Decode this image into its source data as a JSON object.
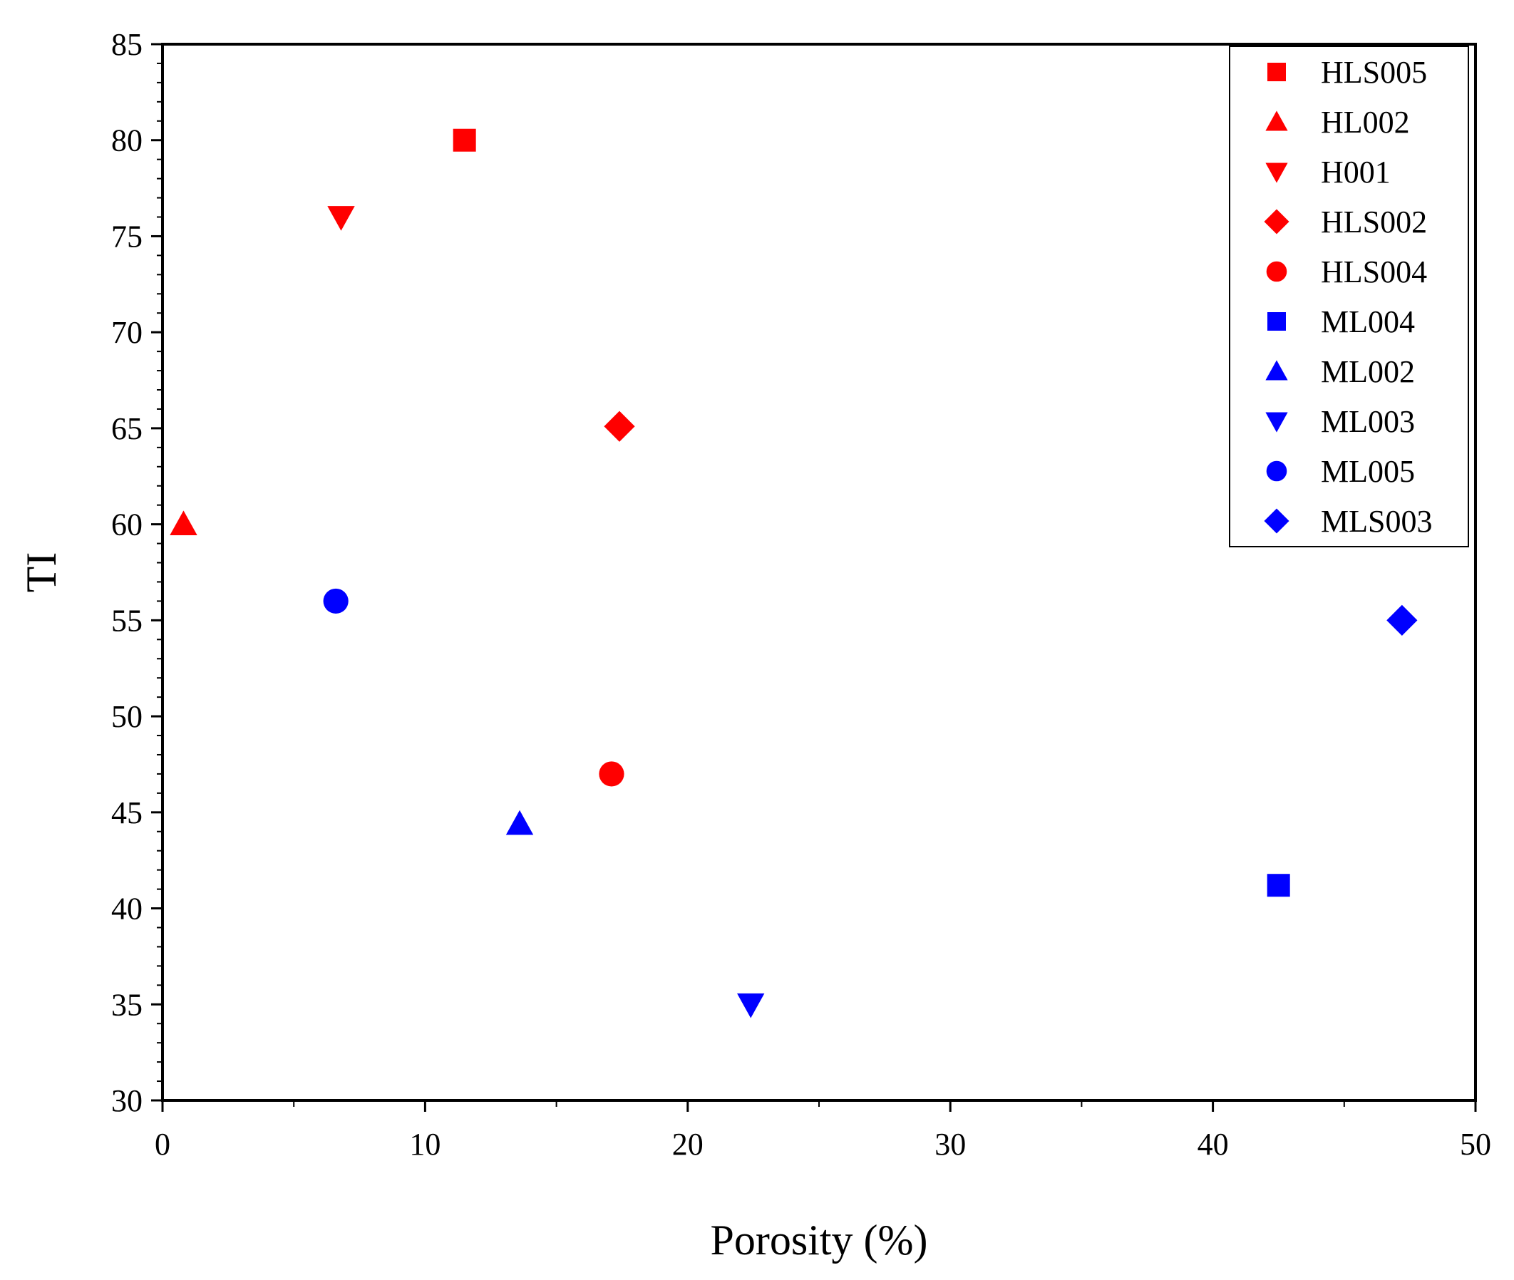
{
  "chart_data": {
    "type": "scatter",
    "title": "",
    "xlabel": "Porosity (%)",
    "ylabel": "TI",
    "xlim": [
      0,
      50
    ],
    "ylim": [
      30,
      85
    ],
    "xticks": [
      0,
      10,
      20,
      30,
      40,
      50
    ],
    "yticks": [
      30,
      35,
      40,
      45,
      50,
      55,
      60,
      65,
      70,
      75,
      80,
      85
    ],
    "x_tick_labels": [
      "0",
      "10",
      "20",
      "30",
      "40",
      "50"
    ],
    "y_tick_labels": [
      "30",
      "35",
      "40",
      "45",
      "50",
      "55",
      "60",
      "65",
      "70",
      "75",
      "80",
      "85"
    ],
    "grid": false,
    "legend_position": "top-right",
    "series": [
      {
        "name": "HLS005",
        "color": "#ff0000",
        "marker": "square",
        "x": [
          11.5
        ],
        "y": [
          80
        ]
      },
      {
        "name": "HL002",
        "color": "#ff0000",
        "marker": "triangle-up",
        "x": [
          0.8
        ],
        "y": [
          60
        ]
      },
      {
        "name": "H001",
        "color": "#ff0000",
        "marker": "triangle-down",
        "x": [
          6.8
        ],
        "y": [
          76
        ]
      },
      {
        "name": "HLS002",
        "color": "#ff0000",
        "marker": "diamond",
        "x": [
          17.4
        ],
        "y": [
          65.1
        ]
      },
      {
        "name": "HLS004",
        "color": "#ff0000",
        "marker": "circle",
        "x": [
          17.1
        ],
        "y": [
          47
        ]
      },
      {
        "name": "ML004",
        "color": "#0000ff",
        "marker": "square",
        "x": [
          42.5
        ],
        "y": [
          41.2
        ]
      },
      {
        "name": "ML002",
        "color": "#0000ff",
        "marker": "triangle-up",
        "x": [
          13.6
        ],
        "y": [
          44.4
        ]
      },
      {
        "name": "ML003",
        "color": "#0000ff",
        "marker": "triangle-down",
        "x": [
          22.4
        ],
        "y": [
          35
        ]
      },
      {
        "name": "ML005",
        "color": "#0000ff",
        "marker": "circle",
        "x": [
          6.6
        ],
        "y": [
          56
        ]
      },
      {
        "name": "MLS003",
        "color": "#0000ff",
        "marker": "diamond",
        "x": [
          47.2
        ],
        "y": [
          55
        ]
      }
    ]
  }
}
